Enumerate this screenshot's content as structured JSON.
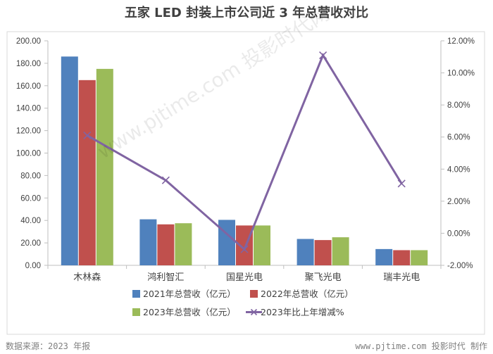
{
  "title": "五家 LED 封装上市公司近 3 年总营收对比",
  "footer": {
    "source": "数据来源：2023 年报",
    "credit": "www.pjtime.com 投影时代 制作"
  },
  "watermark": "www.pjtime.com 投影时代网",
  "chart_data": {
    "type": "bar",
    "categories": [
      "木林森",
      "鸿利智汇",
      "国星光电",
      "聚飞光电",
      "瑞丰光电"
    ],
    "series": [
      {
        "name": "2021年总营收（亿元）",
        "type": "bar",
        "axis": "left",
        "color": "#4f81bd",
        "values": [
          186,
          41,
          40.5,
          23.5,
          14.5
        ]
      },
      {
        "name": "2022年总营收（亿元）",
        "type": "bar",
        "axis": "left",
        "color": "#c0504d",
        "values": [
          165,
          36.5,
          35.5,
          22.5,
          13.5
        ]
      },
      {
        "name": "2023年总营收（亿元）",
        "type": "bar",
        "axis": "left",
        "color": "#9bbb59",
        "values": [
          175,
          37.5,
          35.5,
          25,
          13.5
        ]
      },
      {
        "name": "2023年比上年增减%",
        "type": "line",
        "axis": "right",
        "color": "#8064a2",
        "values": [
          6.1,
          3.3,
          -1.0,
          11.1,
          3.1
        ]
      }
    ],
    "yleft": {
      "min": 0,
      "max": 200,
      "step": 20,
      "ticks": [
        "0.00",
        "20.00",
        "40.00",
        "60.00",
        "80.00",
        "100.00",
        "120.00",
        "140.00",
        "160.00",
        "180.00",
        "200.00"
      ]
    },
    "yright": {
      "min": -2,
      "max": 12,
      "step": 2,
      "ticks": [
        "-2.00%",
        "0.00%",
        "2.00%",
        "4.00%",
        "6.00%",
        "8.00%",
        "10.00%",
        "12.00%"
      ]
    },
    "grid": false,
    "legend": "bottom"
  }
}
